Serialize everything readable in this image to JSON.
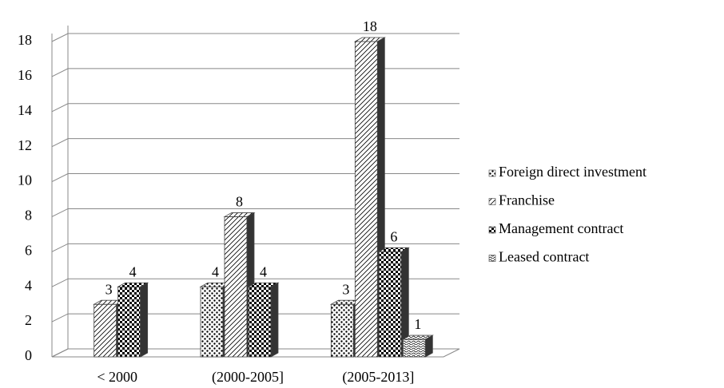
{
  "chart_data": {
    "type": "bar3d",
    "categories": [
      "< 2000",
      "(2000-2005]",
      "(2005-2013]"
    ],
    "series": [
      {
        "name": "Foreign direct investment",
        "color": "#000000",
        "values": [
          null,
          4,
          3
        ]
      },
      {
        "name": "Franchise",
        "color": "#000000",
        "values": [
          3,
          8,
          18
        ]
      },
      {
        "name": "Management contract",
        "color": "#000000",
        "values": [
          4,
          4,
          6
        ]
      },
      {
        "name": "Leased contract",
        "color": "#000000",
        "values": [
          null,
          null,
          1
        ]
      }
    ],
    "ylim": [
      0,
      18
    ],
    "yticks": [
      0,
      2,
      4,
      6,
      8,
      10,
      12,
      14,
      16,
      18
    ],
    "grid": true,
    "legend": "right"
  }
}
